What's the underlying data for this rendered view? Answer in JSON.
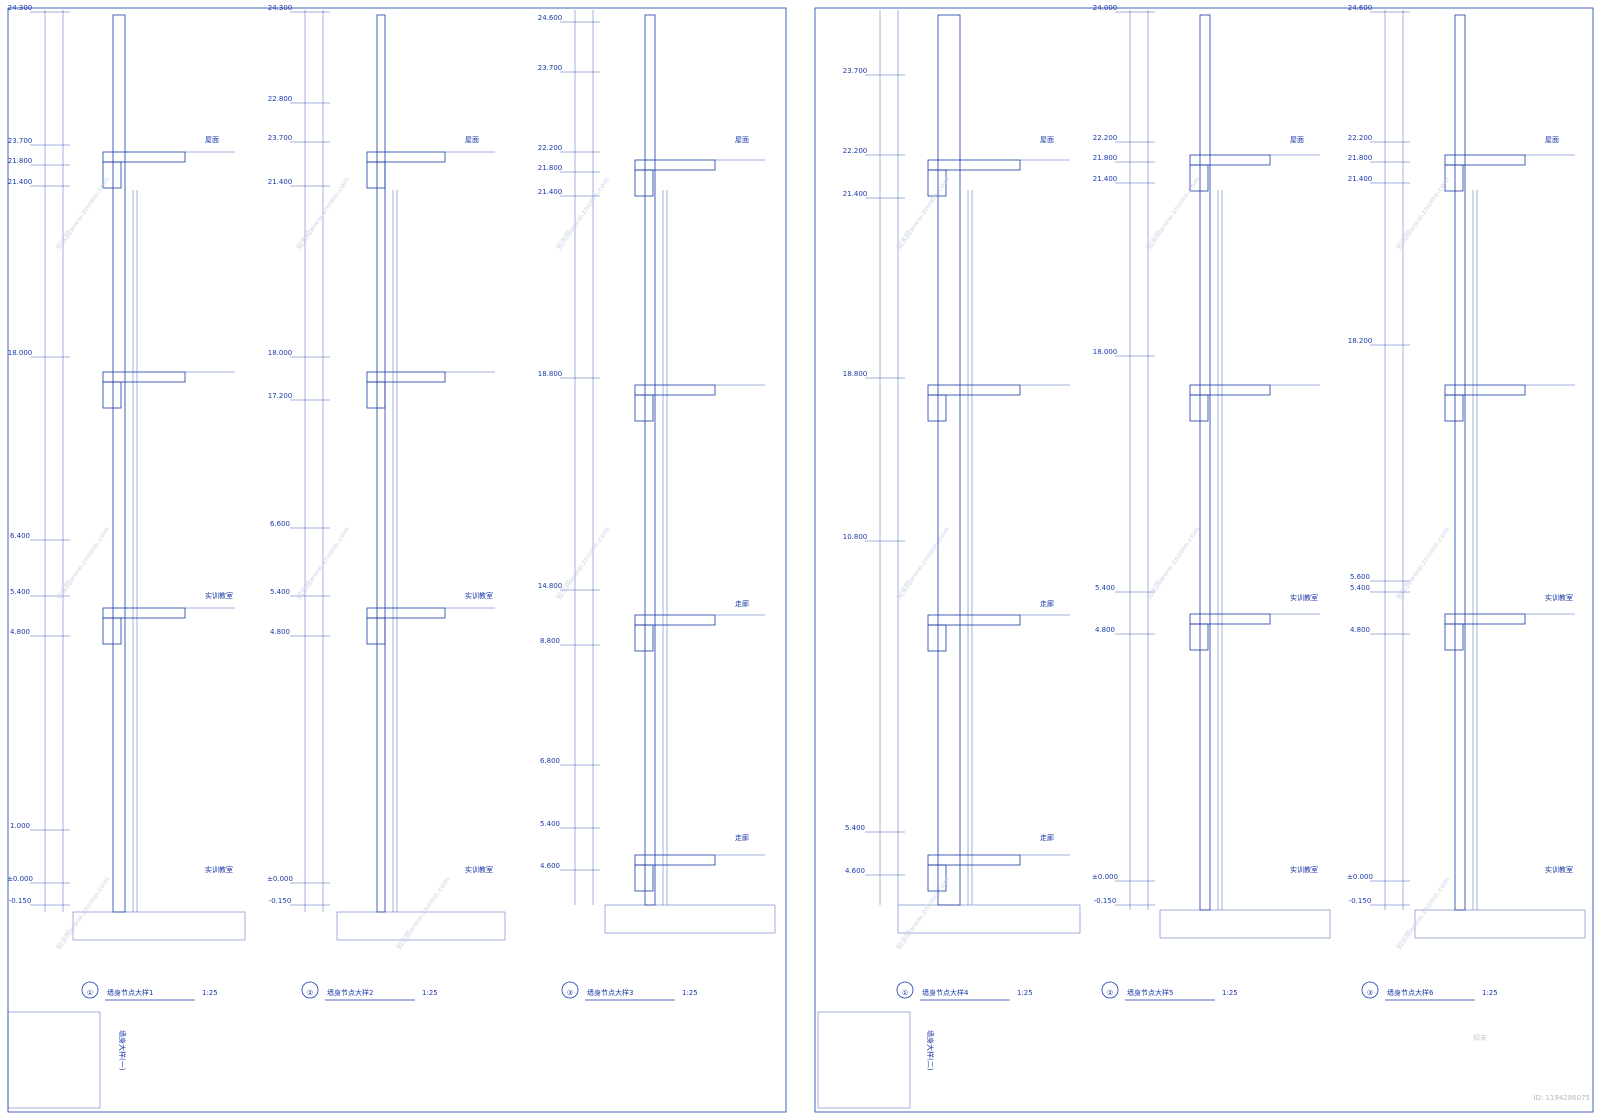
{
  "sheets": [
    {
      "sheet_label": "墙身大样(一)",
      "details": [
        {
          "number": "①",
          "title": "墙身节点大样1",
          "scale": "1:25",
          "levels": [
            "24.300",
            "23.700",
            "21.800",
            "21.400",
            "18.000",
            "6.400",
            "5.400",
            "4.800",
            "1.000",
            "±0.000",
            "-0.150"
          ],
          "rooms": [
            "屋面",
            "实训教室",
            "实训教室"
          ]
        },
        {
          "number": "②",
          "title": "墙身节点大样2",
          "scale": "1:25",
          "levels": [
            "24.300",
            "22.800",
            "23.700",
            "21.400",
            "18.000",
            "17.200",
            "6.600",
            "5.400",
            "4.800",
            "±0.000",
            "-0.150"
          ],
          "rooms": [
            "屋面",
            "实训教室",
            "实训教室"
          ]
        },
        {
          "number": "③",
          "title": "墙身节点大样3",
          "scale": "1:25",
          "levels": [
            "24.600",
            "23.700",
            "22.200",
            "21.800",
            "21.400",
            "18.800",
            "14.800",
            "8.800",
            "6.800",
            "5.400",
            "4.600"
          ],
          "rooms": [
            "屋面",
            "走廊",
            "走廊"
          ]
        }
      ]
    },
    {
      "sheet_label": "墙身大样(二)",
      "details": [
        {
          "number": "①",
          "title": "墙身节点大样4",
          "scale": "1:25",
          "levels": [
            "23.700",
            "22.200",
            "21.400",
            "18.800",
            "10.800",
            "5.400",
            "4.600"
          ],
          "rooms": [
            "屋面",
            "走廊",
            "走廊"
          ]
        },
        {
          "number": "②",
          "title": "墙身节点大样5",
          "scale": "1:25",
          "levels": [
            "24.000",
            "22.200",
            "21.800",
            "21.400",
            "18.000",
            "5.400",
            "4.800",
            "±0.000",
            "-0.150"
          ],
          "rooms": [
            "屋面",
            "实训教室",
            "实训教室"
          ]
        },
        {
          "number": "③",
          "title": "墙身节点大样6",
          "scale": "1:25",
          "levels": [
            "24.600",
            "22.200",
            "21.800",
            "21.400",
            "18.200",
            "5.600",
            "5.400",
            "4.800",
            "±0.000",
            "-0.150"
          ],
          "rooms": [
            "屋面",
            "实训教室",
            "实训教室"
          ]
        }
      ]
    }
  ],
  "watermark": "知末网www.znzmo.com",
  "logo": "知末",
  "id_label": "ID: 1194286075"
}
